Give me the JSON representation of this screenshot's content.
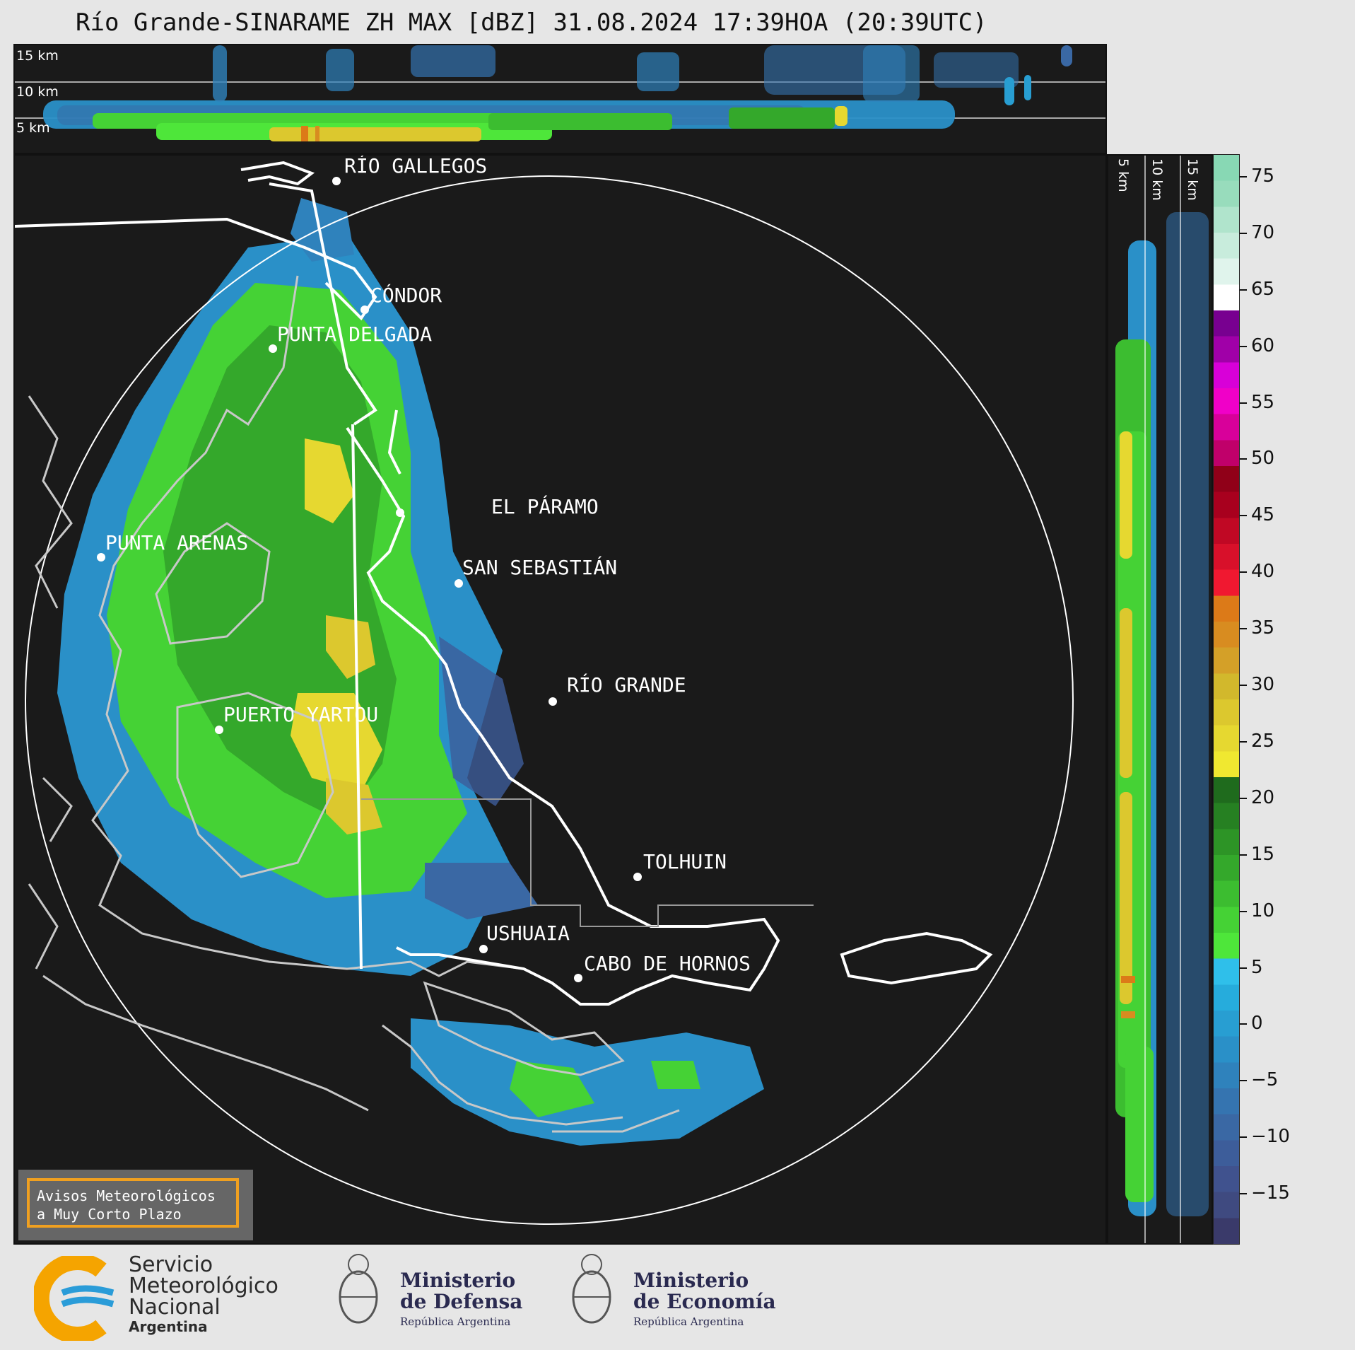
{
  "title": "Río Grande-SINARAME ZH MAX [dBZ] 31.08.2024 17:39HOA (20:39UTC)",
  "top_panel": {
    "height_labels": [
      "15 km",
      "10 km",
      "5 km"
    ]
  },
  "side_panel": {
    "height_labels": [
      "5 km",
      "10 km",
      "15 km"
    ]
  },
  "cities": [
    {
      "name": "RÍO GALLEGOS"
    },
    {
      "name": "CÓNDOR"
    },
    {
      "name": "PUNTA DELGADA"
    },
    {
      "name": "EL PÁRAMO"
    },
    {
      "name": "PUNTA ARENAS"
    },
    {
      "name": "SAN SEBASTIÁN"
    },
    {
      "name": "RÍO GRANDE"
    },
    {
      "name": "PUERTO YARTOU"
    },
    {
      "name": "TOLHUIN"
    },
    {
      "name": "USHUAIA"
    },
    {
      "name": "CABO DE HORNOS"
    }
  ],
  "colorbar": {
    "unit": "dBZ",
    "ticks": [
      "75",
      "70",
      "65",
      "60",
      "55",
      "50",
      "45",
      "40",
      "35",
      "30",
      "25",
      "20",
      "15",
      "10",
      "5",
      "0",
      "−5",
      "−10",
      "−15"
    ],
    "colors": [
      "#3a3a6a",
      "#3f4a80",
      "#40528e",
      "#3d5d9a",
      "#3a68a4",
      "#3574b0",
      "#2f82bc",
      "#2a90c8",
      "#289ed2",
      "#26acdc",
      "#2fbfea",
      "#4ee63a",
      "#45d235",
      "#3cbd30",
      "#34a82b",
      "#2d9426",
      "#268022",
      "#1f6b1d",
      "#f0e830",
      "#e6d830",
      "#dcc82e",
      "#d2b82c",
      "#d4a028",
      "#d88c20",
      "#dc7a18",
      "#f01830",
      "#d8102a",
      "#c00824",
      "#a8001e",
      "#900018",
      "#c0006a",
      "#d8009a",
      "#f000c8",
      "#d800d8",
      "#a000a8",
      "#780090",
      "#ffffff",
      "#e0f4ec",
      "#c8ecdc",
      "#b0e4cc",
      "#98dcbc",
      "#88d8b4"
    ]
  },
  "aviso": {
    "line1": "Avisos Meteorológicos",
    "line2": "a Muy Corto Plazo"
  },
  "logos": {
    "smn": {
      "line1": "Servicio",
      "line2": "Meteorológico",
      "line3": "Nacional",
      "line4": "Argentina"
    },
    "defensa": {
      "line1": "Ministerio",
      "line2": "de Defensa",
      "line3": "República Argentina"
    },
    "economia": {
      "line1": "Ministerio",
      "line2": "de Economía",
      "line3": "República Argentina"
    }
  },
  "colors": {
    "ring": "#ffffff",
    "coast_ar": "#ffffff",
    "coast_cl": "#c8c8c8",
    "background": "#1a1a1a"
  }
}
